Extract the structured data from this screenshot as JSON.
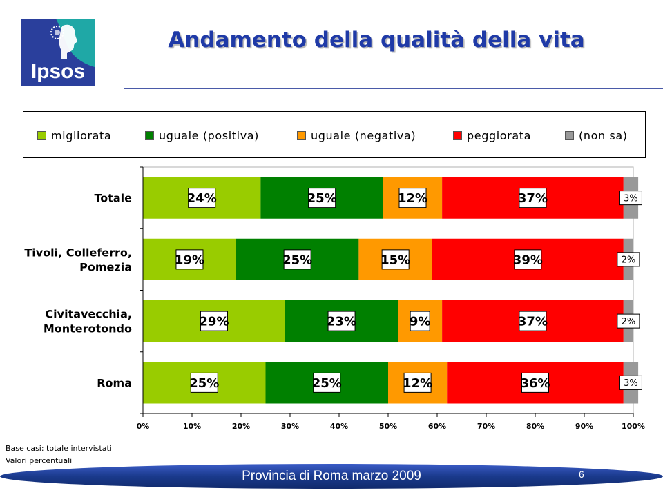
{
  "header": {
    "title": "Andamento della qualità della vita",
    "logo_text": "Ipsos"
  },
  "colors": {
    "title": "#1f3aa7",
    "logo_bg": "#2a3f9c",
    "logo_accent": "#1fa8a6",
    "footer": "#1a3a8c"
  },
  "chart_data": {
    "type": "bar",
    "orientation": "horizontal",
    "stacked": true,
    "categories": [
      "Totale",
      "Tivoli, Colleferro, Pomezia",
      "Civitavecchia, Monterotondo",
      "Roma"
    ],
    "category_lines": [
      [
        "Totale"
      ],
      [
        "Tivoli, Colleferro,",
        "Pomezia"
      ],
      [
        "Civitavecchia,",
        "Monterotondo"
      ],
      [
        "Roma"
      ]
    ],
    "series": [
      {
        "name": "migliorata",
        "color": "#99cc00",
        "values": [
          24,
          19,
          29,
          25
        ]
      },
      {
        "name": "uguale (positiva)",
        "color": "#008000",
        "values": [
          25,
          25,
          23,
          25
        ]
      },
      {
        "name": "uguale (negativa)",
        "color": "#ff9900",
        "values": [
          12,
          15,
          9,
          12
        ]
      },
      {
        "name": "peggiorata",
        "color": "#ff0000",
        "values": [
          37,
          39,
          37,
          36
        ]
      },
      {
        "name": "(non sa)",
        "color": "#999999",
        "values": [
          3,
          2,
          2,
          3
        ]
      }
    ],
    "value_suffix": "%",
    "xlim": [
      0,
      100
    ],
    "x_ticks": [
      "0%",
      "10%",
      "20%",
      "30%",
      "40%",
      "50%",
      "60%",
      "70%",
      "80%",
      "90%",
      "100%"
    ],
    "legend_position": "top",
    "grid": false
  },
  "footnotes": [
    "Base casi: totale intervistati",
    "Valori percentuali"
  ],
  "footer": {
    "text": "Provincia di Roma marzo 2009",
    "page_number": "6"
  }
}
